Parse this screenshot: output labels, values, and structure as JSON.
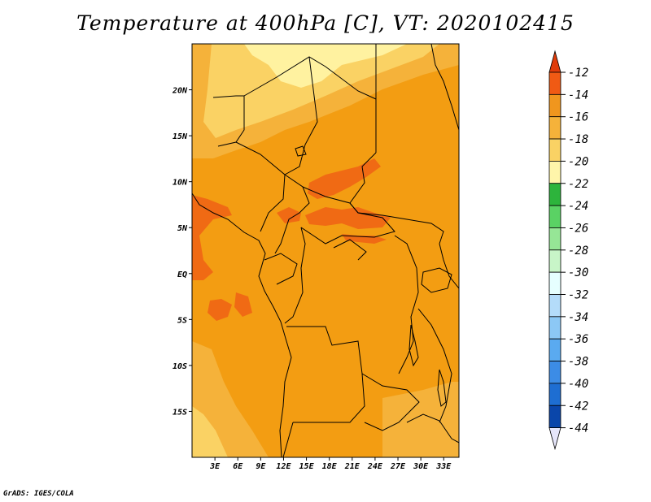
{
  "title": "Temperature at 400hPa [C], VT: 2020102415",
  "credit": "GrADS: IGES/COLA",
  "map": {
    "lon_range": [
      0,
      35
    ],
    "lat_range": [
      -20,
      25
    ],
    "lat_ticks": [
      {
        "value": 20,
        "label": "20N"
      },
      {
        "value": 15,
        "label": "15N"
      },
      {
        "value": 10,
        "label": "10N"
      },
      {
        "value": 5,
        "label": "5N"
      },
      {
        "value": 0,
        "label": "EQ"
      },
      {
        "value": -5,
        "label": "5S"
      },
      {
        "value": -10,
        "label": "10S"
      },
      {
        "value": -15,
        "label": "15S"
      }
    ],
    "lon_ticks": [
      {
        "value": 3,
        "label": "3E"
      },
      {
        "value": 6,
        "label": "6E"
      },
      {
        "value": 9,
        "label": "9E"
      },
      {
        "value": 12,
        "label": "12E"
      },
      {
        "value": 15,
        "label": "15E"
      },
      {
        "value": 18,
        "label": "18E"
      },
      {
        "value": 21,
        "label": "21E"
      },
      {
        "value": 24,
        "label": "24E"
      },
      {
        "value": 27,
        "label": "27E"
      },
      {
        "value": 30,
        "label": "30E"
      },
      {
        "value": 33,
        "label": "33E"
      }
    ]
  },
  "colorbar": {
    "levels": [
      "-12",
      "-14",
      "-16",
      "-18",
      "-20",
      "-22",
      "-24",
      "-26",
      "-28",
      "-30",
      "-32",
      "-34",
      "-36",
      "-38",
      "-40",
      "-42",
      "-44"
    ],
    "colors": [
      "#f05a14",
      "#f0961e",
      "#f5b23a",
      "#fad264",
      "#fff5aa",
      "#2db43c",
      "#5ad264",
      "#96e696",
      "#c8f5c8",
      "#e6ffff",
      "#b4dcfa",
      "#8cc8f5",
      "#5aaaf0",
      "#3c8ce6",
      "#1e6ed2",
      "#0a46aa",
      "#081468"
    ],
    "top_arrow_color": "#e03c0a",
    "bottom_arrow_color": "#e6e6fa"
  },
  "fields": {
    "background_color": "#f39d12",
    "band_colors": {
      "warm": "#f06a14",
      "mid": "#f5b23a",
      "cool": "#fad264",
      "cold": "#fff2a0"
    }
  }
}
